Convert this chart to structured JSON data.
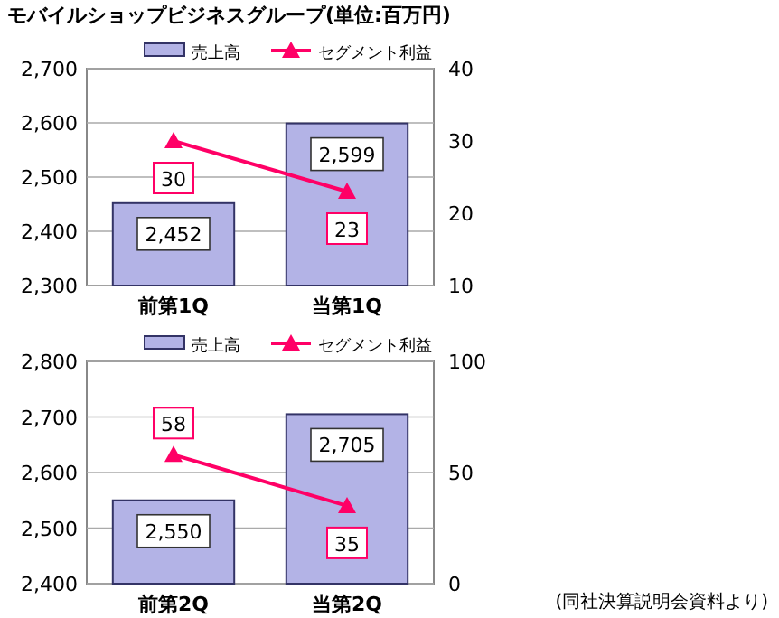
{
  "chart_data": [
    {
      "type": "bar",
      "title": "モバイルショップビジネスグループ(単位:百万円)",
      "categories": [
        "前第1Q",
        "当第1Q"
      ],
      "legend": "top",
      "grid": "y",
      "marker": "triangle",
      "ylim": [
        2300,
        2700
      ],
      "yticks": [
        {
          "value": 2300,
          "label": "2,300"
        },
        {
          "value": 2400,
          "label": "2,400"
        },
        {
          "value": 2500,
          "label": "2,500"
        },
        {
          "value": 2600,
          "label": "2,600"
        },
        {
          "value": 2700,
          "label": "2,700"
        }
      ],
      "y2lim": [
        10,
        40
      ],
      "y2ticks": [
        10,
        20,
        30,
        40
      ],
      "series": [
        {
          "name": "売上高",
          "color": "#b3b3e6",
          "values": [
            2452,
            2599
          ],
          "value_labels": [
            "2,452",
            "2,599"
          ]
        },
        {
          "name": "セグメント利益",
          "type": "line",
          "axis": "y2",
          "color": "#ff0066",
          "values": [
            30,
            23
          ],
          "value_labels": [
            "30",
            "23"
          ]
        }
      ]
    },
    {
      "type": "bar",
      "categories": [
        "前第2Q",
        "当第2Q"
      ],
      "legend": "top",
      "grid": "y",
      "marker": "triangle",
      "annotations": [
        "(同社決算説明会資料より)"
      ],
      "ylim": [
        2400,
        2800
      ],
      "yticks": [
        {
          "value": 2400,
          "label": "2,400"
        },
        {
          "value": 2500,
          "label": "2,500"
        },
        {
          "value": 2600,
          "label": "2,600"
        },
        {
          "value": 2700,
          "label": "2,700"
        },
        {
          "value": 2800,
          "label": "2,800"
        }
      ],
      "y2lim": [
        0,
        100
      ],
      "y2ticks": [
        0,
        50,
        100
      ],
      "series": [
        {
          "name": "売上高",
          "color": "#b3b3e6",
          "values": [
            2550,
            2705
          ],
          "value_labels": [
            "2,550",
            "2,705"
          ]
        },
        {
          "name": "セグメント利益",
          "type": "line",
          "axis": "y2",
          "color": "#ff0066",
          "values": [
            58,
            35
          ],
          "value_labels": [
            "58",
            "35"
          ]
        }
      ]
    }
  ]
}
